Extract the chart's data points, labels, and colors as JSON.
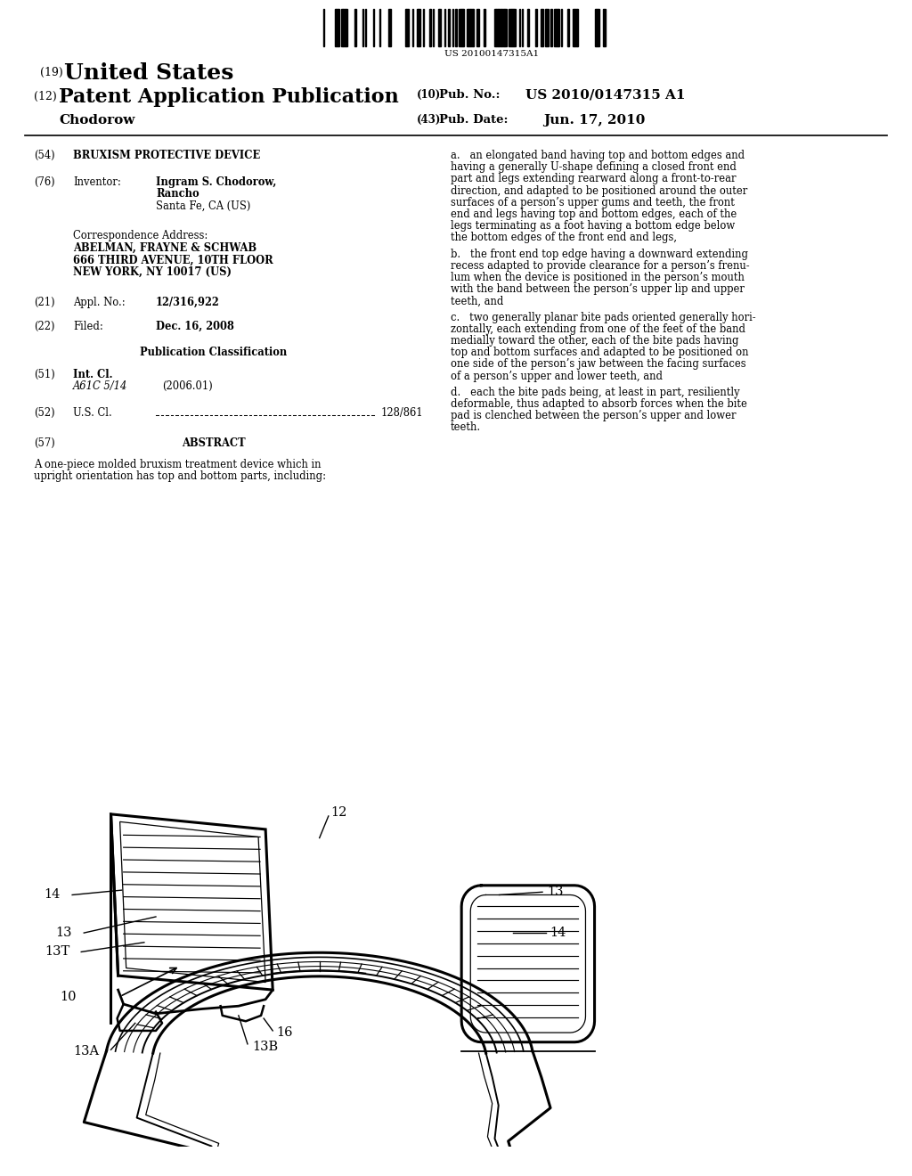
{
  "bg_color": "#ffffff",
  "barcode_text": "US 20100147315A1",
  "label_19": "(19)",
  "title_19": "United States",
  "label_12": "(12)",
  "title_12": "Patent Application Publication",
  "inventor_surname": "Chodorow",
  "pub_no_label": "(10)",
  "pub_no_sub": "Pub. No.:",
  "pub_no_value": "US 2010/0147315 A1",
  "pub_date_label": "(43)",
  "pub_date_sub": "Pub. Date:",
  "pub_date_value": "Jun. 17, 2010",
  "f54_label": "(54)",
  "f54_val": "BRUXISM PROTECTIVE DEVICE",
  "f76_label": "(76)",
  "f76_key": "Inventor:",
  "f76_name": "Ingram S. Chodorow,",
  "f76_city": "Rancho",
  "f76_state": "Santa Fe, CA (US)",
  "corr_label": "Correspondence Address:",
  "corr1": "ABELMAN, FRAYNE & SCHWAB",
  "corr2": "666 THIRD AVENUE, 10TH FLOOR",
  "corr3": "NEW YORK, NY 10017 (US)",
  "f21_label": "(21)",
  "f21_key": "Appl. No.:",
  "f21_val": "12/316,922",
  "f22_label": "(22)",
  "f22_key": "Filed:",
  "f22_val": "Dec. 16, 2008",
  "pub_class": "Publication Classification",
  "f51_label": "(51)",
  "f51_key": "Int. Cl.",
  "f51_code": "A61C 5/14",
  "f51_year": "(2006.01)",
  "f52_label": "(52)",
  "f52_key": "U.S. Cl.",
  "f52_val": "128/861",
  "f57_label": "(57)",
  "f57_header": "ABSTRACT",
  "abstract1": "A one-piece molded bruxism treatment device which in",
  "abstract2": "upright orientation has top and bottom parts, including:",
  "claim_a": [
    "a.   an elongated band having top and bottom edges and",
    "having a generally U-shape defining a closed front end",
    "part and legs extending rearward along a front-to-rear",
    "direction, and adapted to be positioned around the outer",
    "surfaces of a person’s upper gums and teeth, the front",
    "end and legs having top and bottom edges, each of the",
    "legs terminating as a foot having a bottom edge below",
    "the bottom edges of the front end and legs,"
  ],
  "claim_b": [
    "b.   the front end top edge having a downward extending",
    "recess adapted to provide clearance for a person’s frenu-",
    "lum when the device is positioned in the person’s mouth",
    "with the band between the person’s upper lip and upper",
    "teeth, and"
  ],
  "claim_c": [
    "c.   two generally planar bite pads oriented generally hori-",
    "zontally, each extending from one of the feet of the band",
    "medially toward the other, each of the bite pads having",
    "top and bottom surfaces and adapted to be positioned on",
    "one side of the person’s jaw between the facing surfaces",
    "of a person’s upper and lower teeth, and"
  ],
  "claim_d": [
    "d.   each the bite pads being, at least in part, resiliently",
    "deformable, thus adapted to absorb forces when the bite",
    "pad is clenched between the person’s upper and lower",
    "teeth."
  ]
}
